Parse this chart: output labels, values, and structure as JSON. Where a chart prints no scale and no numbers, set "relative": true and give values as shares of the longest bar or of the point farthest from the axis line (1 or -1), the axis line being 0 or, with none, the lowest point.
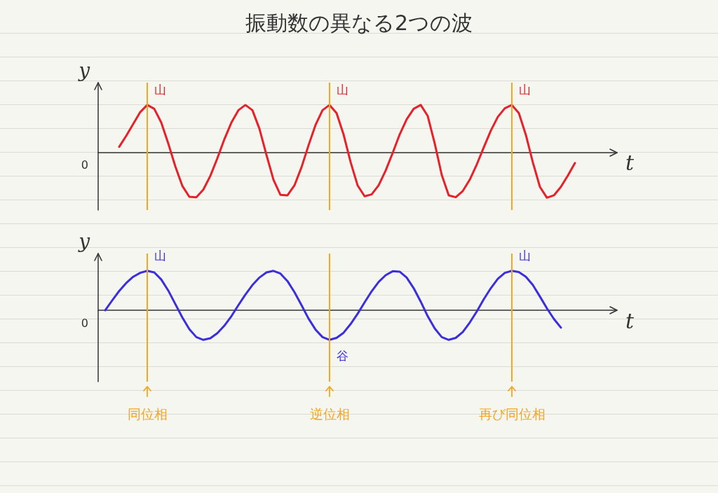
{
  "chart_data": [
    {
      "type": "line",
      "title": "振動数の異なる2つの波",
      "xlabel": "t",
      "ylabel": "y",
      "relative": true,
      "grid": true,
      "categories": [
        null,
        null,
        null,
        null,
        null,
        null,
        null,
        null,
        null,
        null,
        null,
        null,
        null,
        null,
        null,
        null,
        null,
        null,
        null,
        null,
        null,
        null,
        null,
        null,
        null,
        null,
        null,
        null,
        null,
        null,
        null,
        null,
        null,
        null,
        null,
        null,
        null,
        null,
        null,
        null,
        null,
        null,
        null,
        null,
        null,
        null,
        null,
        null,
        null,
        null,
        null,
        null,
        null,
        null,
        null,
        null,
        null,
        null,
        null,
        null,
        null,
        null,
        null,
        null,
        null,
        null,
        null,
        null,
        null,
        null,
        null,
        null,
        null,
        null,
        null
      ],
      "series": [
        {
          "color": "#e8202a",
          "values": [
            null,
            null,
            null,
            0.12,
            0.35,
            0.6,
            0.85,
            1,
            0.92,
            0.63,
            0.19,
            -0.29,
            -0.7,
            -0.93,
            -0.94,
            -0.78,
            -0.49,
            -0.12,
            0.28,
            0.63,
            0.89,
            1,
            0.89,
            0.5,
            -0.05,
            -0.57,
            -0.89,
            -0.9,
            -0.69,
            -0.31,
            0.15,
            0.58,
            0.89,
            1,
            0.83,
            0.38,
            -0.2,
            -0.69,
            -0.92,
            -0.88,
            -0.69,
            -0.38,
            -0.01,
            0.38,
            0.7,
            0.92,
            1,
            0.77,
            0.19,
            -0.47,
            -0.9,
            -0.94,
            -0.81,
            -0.57,
            -0.25,
            0.11,
            0.46,
            0.75,
            0.93,
            1,
            0.83,
            0.37,
            -0.21,
            -0.72,
            -0.95,
            -0.9,
            -0.72,
            -0.48,
            -0.22,
            null,
            null,
            null,
            null,
            null,
            null
          ]
        }
      ],
      "annotations": [
        "0",
        "山",
        "山",
        "山"
      ]
    },
    {
      "type": "line",
      "xlabel": "t",
      "ylabel": "y",
      "relative": true,
      "grid": true,
      "categories": [
        null,
        null,
        null,
        null,
        null,
        null,
        null,
        null,
        null,
        null,
        null,
        null,
        null,
        null,
        null,
        null,
        null,
        null,
        null,
        null,
        null,
        null,
        null,
        null,
        null,
        null,
        null,
        null,
        null,
        null,
        null,
        null,
        null,
        null,
        null,
        null,
        null,
        null,
        null,
        null,
        null,
        null,
        null,
        null,
        null,
        null,
        null,
        null,
        null,
        null,
        null,
        null,
        null,
        null,
        null,
        null,
        null,
        null,
        null,
        null,
        null,
        null,
        null,
        null,
        null,
        null,
        null,
        null,
        null,
        null,
        null,
        null,
        null,
        null,
        null
      ],
      "series": [
        {
          "color": "#3a2ee0",
          "values": [
            null,
            0,
            0.25,
            0.49,
            0.69,
            0.85,
            0.95,
            1,
            0.96,
            0.78,
            0.5,
            0.16,
            -0.18,
            -0.48,
            -0.68,
            -0.75,
            -0.71,
            -0.58,
            -0.39,
            -0.15,
            0.13,
            0.4,
            0.64,
            0.83,
            0.96,
            1,
            0.93,
            0.74,
            0.46,
            0.13,
            -0.21,
            -0.49,
            -0.68,
            -0.75,
            -0.7,
            -0.57,
            -0.35,
            -0.09,
            0.2,
            0.48,
            0.72,
            0.89,
            0.99,
            0.98,
            0.83,
            0.56,
            0.22,
            -0.15,
            -0.46,
            -0.68,
            -0.75,
            -0.7,
            -0.55,
            -0.31,
            -0.03,
            0.28,
            0.56,
            0.8,
            0.95,
            1,
            0.97,
            0.85,
            0.64,
            0.35,
            0.05,
            -0.22,
            -0.44,
            null,
            null,
            null,
            null,
            null,
            null,
            null,
            null
          ]
        }
      ],
      "annotations": [
        "0",
        "山",
        "谷",
        "山",
        "同位相",
        "逆位相",
        "再び同位相"
      ]
    }
  ]
}
